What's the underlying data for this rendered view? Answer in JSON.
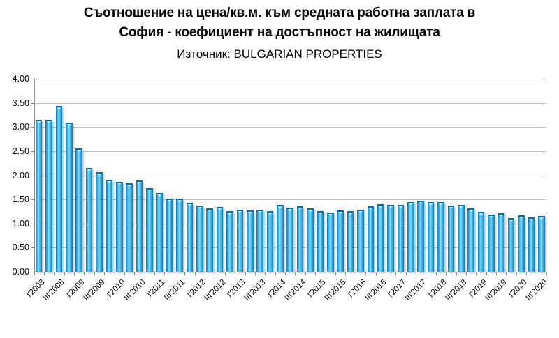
{
  "header": {
    "title_line1": "Съотношение на цена/кв.м. към средната работна заплата в",
    "title_line2": "София - коефициент на достъпност на жилищата",
    "source": "Източник: BULGARIAN PROPERTIES"
  },
  "chart_data": {
    "type": "bar",
    "title": "Съотношение на цена/кв.м. към средната работна заплата в София - коефициент на достъпност на жилищата",
    "subtitle": "Източник: BULGARIAN PROPERTIES",
    "categories": [
      "I'2008",
      "II'2008",
      "III'2008",
      "IV'2008",
      "I'2009",
      "II'2009",
      "III'2009",
      "IV'2009",
      "I'2010",
      "II'2010",
      "III'2010",
      "IV'2010",
      "I'2011",
      "II'2011",
      "III'2011",
      "IV'2011",
      "I'2012",
      "II'2012",
      "III'2012",
      "IV'2012",
      "I'2013",
      "II'2013",
      "III'2013",
      "IV'2013",
      "I'2014",
      "II'2014",
      "III'2014",
      "IV'2014",
      "I'2015",
      "II'2015",
      "III'2015",
      "IV'2015",
      "I'2016",
      "II'2016",
      "III'2016",
      "IV'2016",
      "I'2017",
      "II'2017",
      "III'2017",
      "IV'2017",
      "I'2018",
      "II'2018",
      "III'2018",
      "IV'2018",
      "I'2019",
      "II'2019",
      "III'2019",
      "IV'2019",
      "I'2020",
      "II'2020",
      "III'2020"
    ],
    "values": [
      3.15,
      3.15,
      3.43,
      3.09,
      2.56,
      2.15,
      2.06,
      1.91,
      1.87,
      1.83,
      1.89,
      1.74,
      1.63,
      1.52,
      1.51,
      1.43,
      1.37,
      1.32,
      1.34,
      1.25,
      1.29,
      1.27,
      1.29,
      1.25,
      1.38,
      1.33,
      1.36,
      1.31,
      1.26,
      1.23,
      1.27,
      1.25,
      1.29,
      1.36,
      1.4,
      1.38,
      1.39,
      1.45,
      1.47,
      1.44,
      1.45,
      1.37,
      1.39,
      1.31,
      1.24,
      1.19,
      1.22,
      1.11,
      1.17,
      1.12,
      1.15
    ],
    "x_label_interval": 2,
    "x_tick_labels_visible": [
      "I'2008",
      "III'2008",
      "I'2009",
      "III'2009",
      "I'2010",
      "III'2010",
      "I'2011",
      "III'2011",
      "I'2012",
      "III'2012",
      "I'2013",
      "III'2013",
      "I'2014",
      "III'2014",
      "I'2015",
      "III'2015",
      "I'2016",
      "III'2016",
      "I'2017",
      "III'2017",
      "I'2018",
      "III'2018",
      "I'2019",
      "III'2019",
      "I'2020",
      "III'2020"
    ],
    "y_tick_labels": [
      "4.00",
      "3.50",
      "3.00",
      "2.50",
      "2.00",
      "1.50",
      "1.00",
      "0.50",
      "0.00"
    ],
    "ylim": [
      0,
      4
    ],
    "ytick_step": 0.5,
    "grid": "horizontal",
    "legend": "none",
    "xlabel": "",
    "ylabel": "",
    "colors": {
      "bar_fill": "#29ABE2",
      "bar_edge": "#0B6CA5",
      "bar_highlight": "#8EDBF5",
      "gridline": "#BFBFBF",
      "axis": "#8C8C8C",
      "text": "#000000",
      "background": "#FFFFFF"
    }
  }
}
